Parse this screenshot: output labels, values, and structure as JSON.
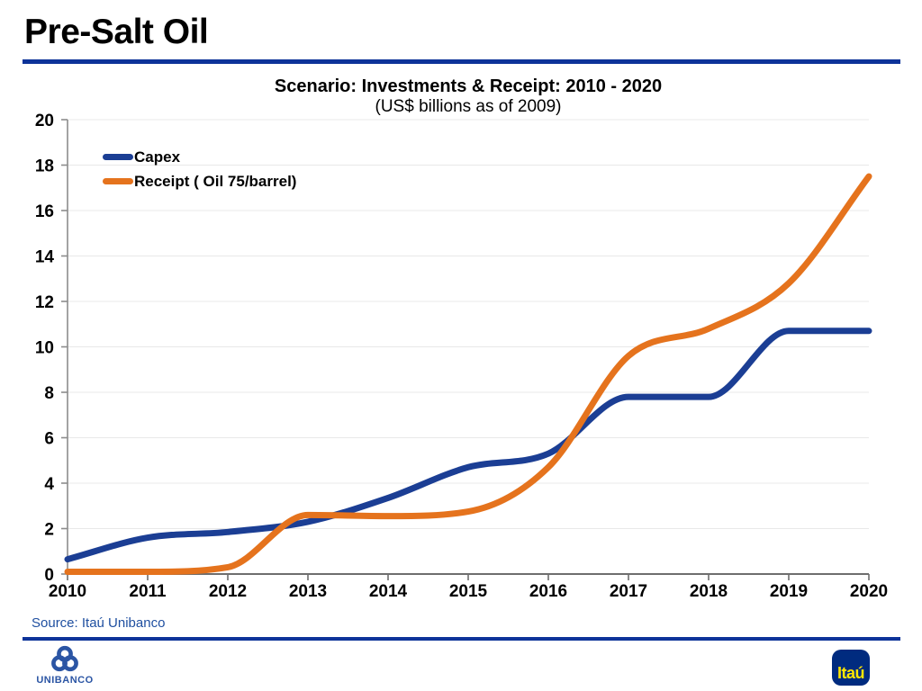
{
  "header": {
    "title": "Pre-Salt Oil"
  },
  "chart": {
    "title": "Scenario: Investments & Receipt: 2010 - 2020",
    "subtitle": "(US$ billions as of 2009)"
  },
  "chart_data": {
    "type": "line",
    "categories": [
      "2010",
      "2011",
      "2012",
      "2013",
      "2014",
      "2015",
      "2016",
      "2017",
      "2018",
      "2019",
      "2020"
    ],
    "series": [
      {
        "name": "Capex",
        "color": "#1B3E94",
        "values": [
          0.65,
          1.6,
          1.85,
          2.3,
          3.35,
          4.7,
          5.3,
          7.8,
          7.8,
          10.7,
          10.7
        ]
      },
      {
        "name": "Receipt ( Oil 75/barrel)",
        "color": "#E5731D",
        "values": [
          0.1,
          0.1,
          0.3,
          2.6,
          2.55,
          2.75,
          4.7,
          9.6,
          10.8,
          12.8,
          17.5
        ]
      }
    ],
    "title": "Scenario: Investments & Receipt: 2010 - 2020",
    "subtitle": "(US$ billions as of 2009)",
    "xlabel": "",
    "ylabel": "",
    "ylim": [
      0,
      20
    ],
    "ytick_step": 2,
    "grid": "horizontal-light",
    "legend_position": "top-left-inside"
  },
  "source": {
    "label": "Source: Itaú Unibanco"
  },
  "footer": {
    "unibanco_label": "UNIBANCO",
    "itau_label": "Itaú"
  },
  "colors": {
    "accent_blue": "#0D3399",
    "capex_blue": "#1B3E94",
    "receipt_orange": "#E5731D",
    "grid_gray": "#E8E8E8",
    "axis_gray": "#8C8C8C",
    "x_axis_gray": "#6E6E6E",
    "source_blue": "#1F4FA0",
    "unibanco_blue": "#2B55A4",
    "itau_navy": "#002B7F",
    "itau_yellow": "#FFE600"
  }
}
